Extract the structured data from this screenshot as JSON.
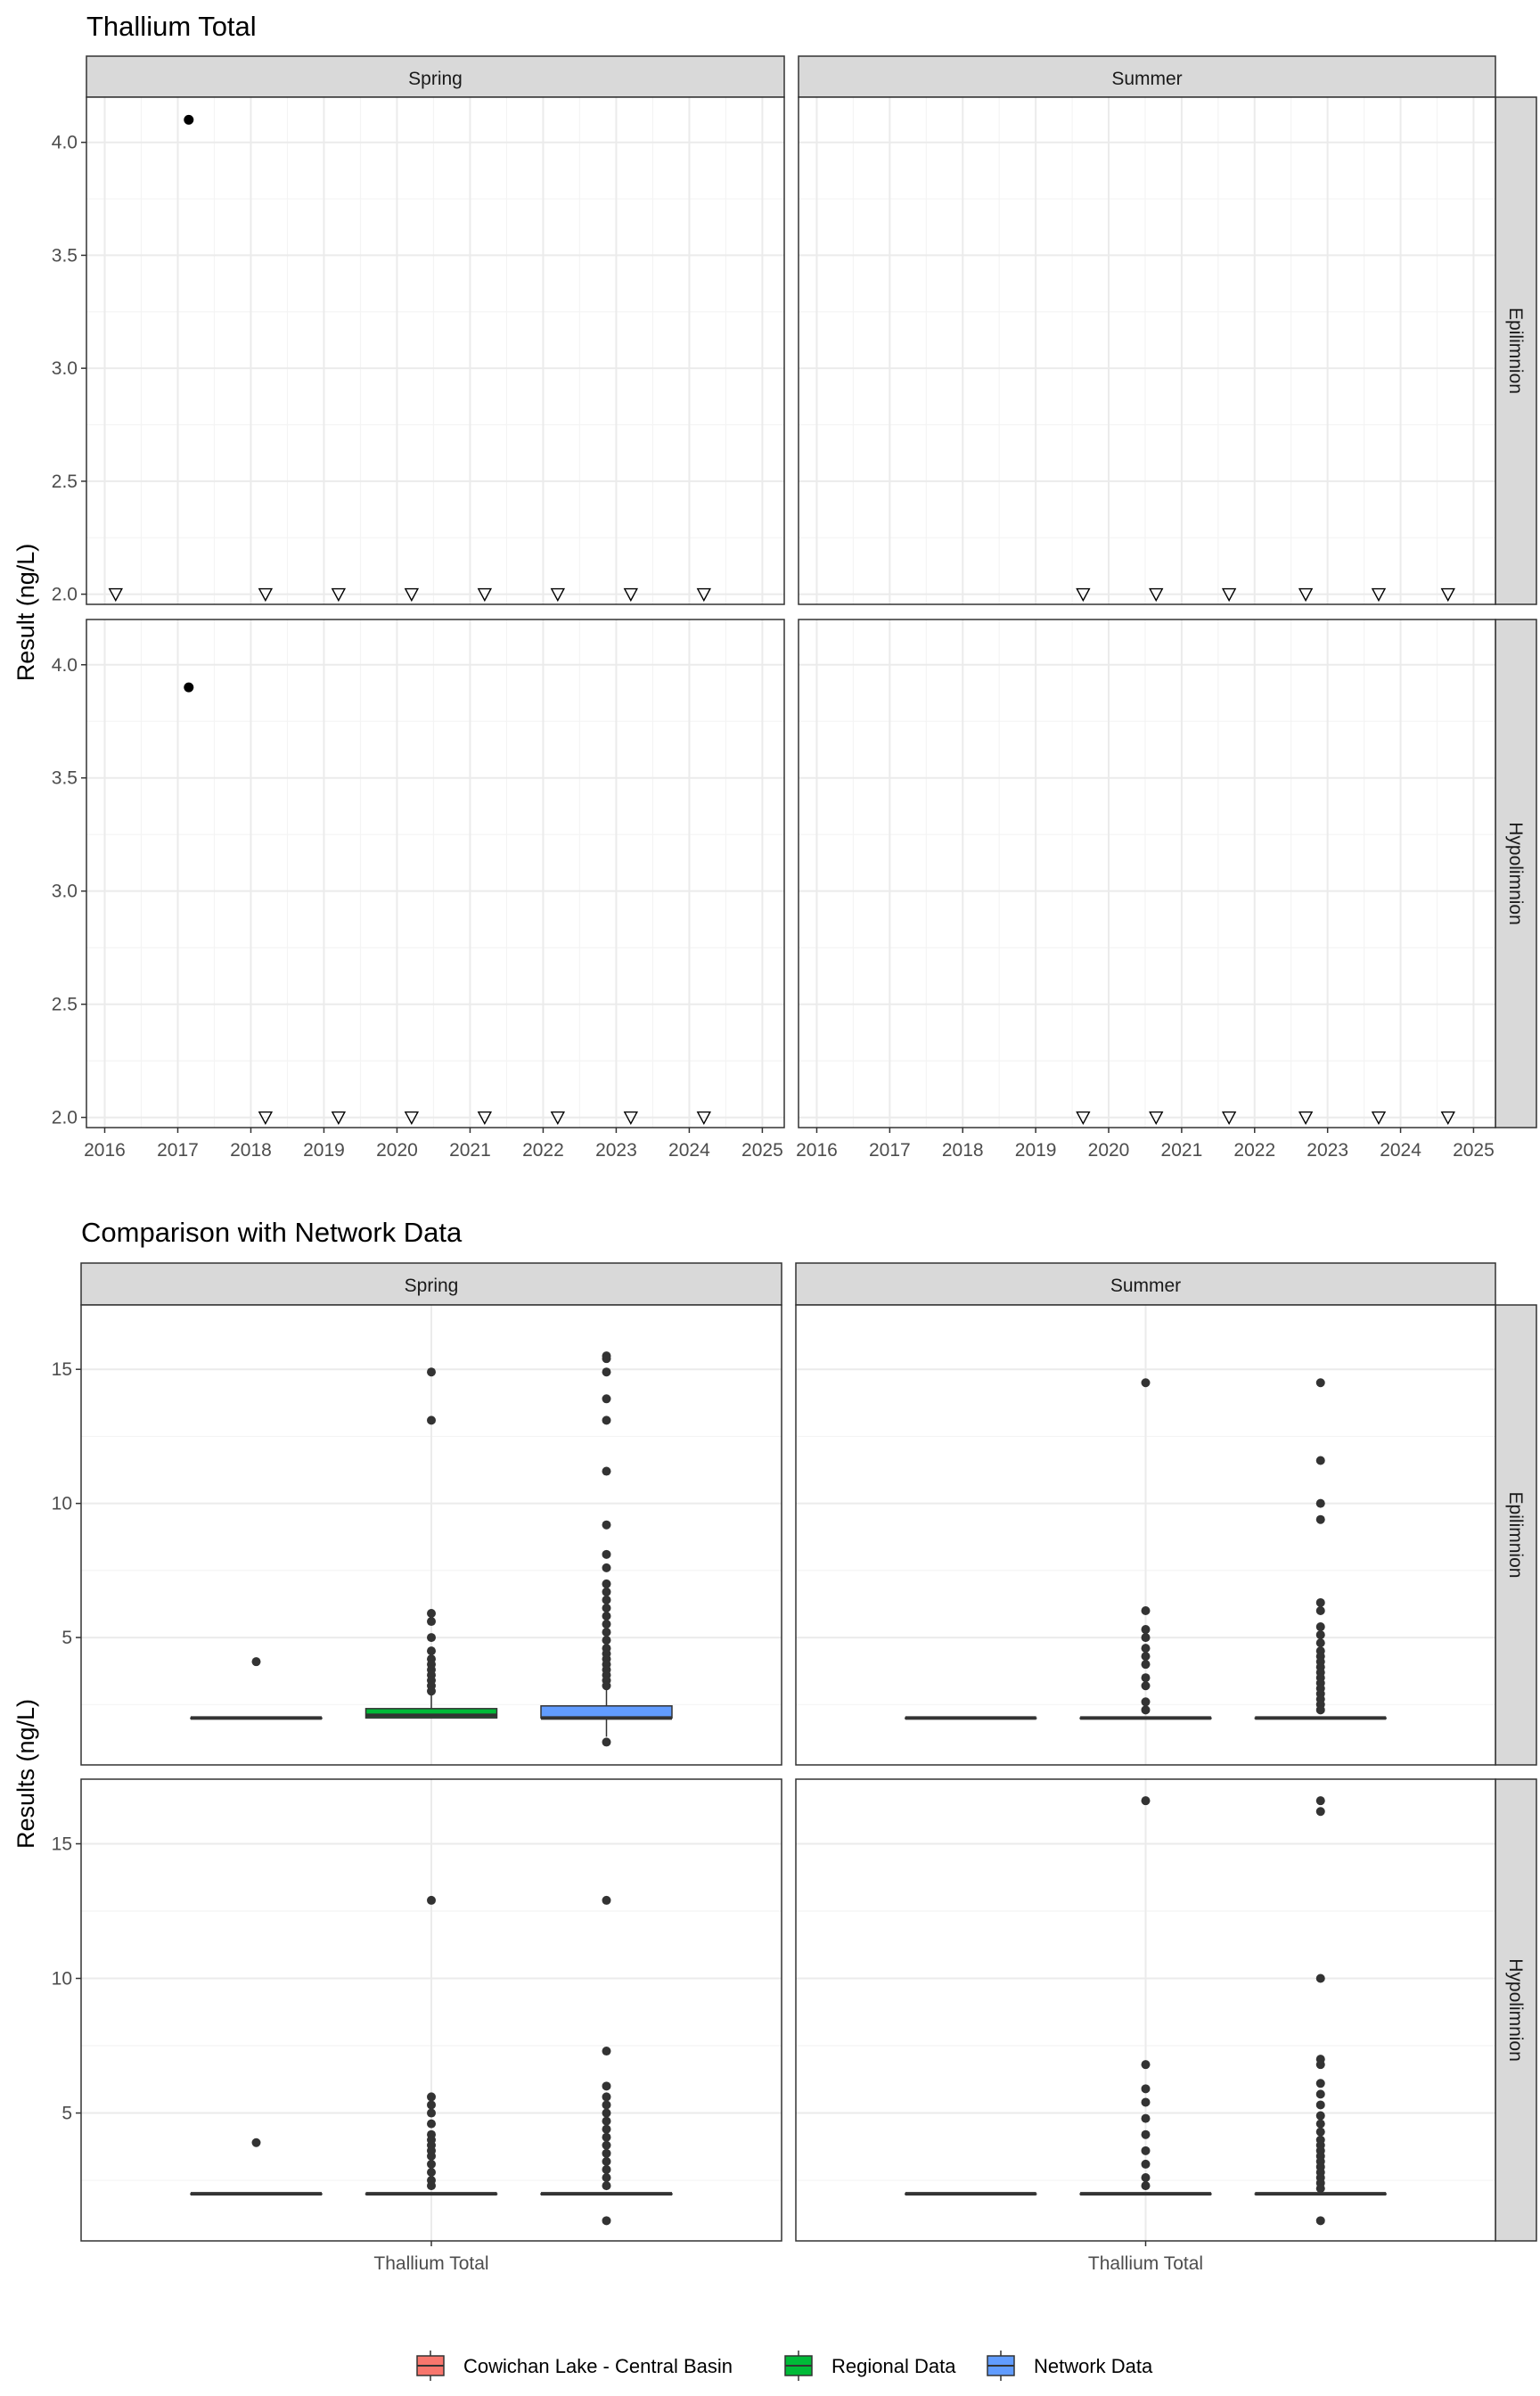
{
  "chart_data": [
    {
      "type": "scatter",
      "title": "Thallium Total",
      "ylabel": "Result (ng/L)",
      "xlabel": "",
      "facet_cols": [
        "Spring",
        "Summer"
      ],
      "facet_rows": [
        "Epilimnion",
        "Hypolimnion"
      ],
      "x_ticks": [
        "2016",
        "2017",
        "2018",
        "2019",
        "2020",
        "2021",
        "2022",
        "2023",
        "2024",
        "2025"
      ],
      "y_ticks": [
        "2.0",
        "2.5",
        "3.0",
        "3.5",
        "4.0"
      ],
      "xlim": [
        2015.75,
        2025.3
      ],
      "ylim": [
        1.955,
        4.2
      ],
      "grid": true,
      "marker_note": "filled circle = detected value; open triangle = below detection limit",
      "panels": [
        {
          "col": "Spring",
          "row": "Epilimnion",
          "detects": [
            {
              "x": 2017.15,
              "y": 4.1
            }
          ],
          "non_detects": [
            {
              "x": 2016.15,
              "y": 2.0
            },
            {
              "x": 2018.2,
              "y": 2.0
            },
            {
              "x": 2019.2,
              "y": 2.0
            },
            {
              "x": 2020.2,
              "y": 2.0
            },
            {
              "x": 2021.2,
              "y": 2.0
            },
            {
              "x": 2022.2,
              "y": 2.0
            },
            {
              "x": 2023.2,
              "y": 2.0
            },
            {
              "x": 2024.2,
              "y": 2.0
            }
          ]
        },
        {
          "col": "Summer",
          "row": "Epilimnion",
          "detects": [],
          "non_detects": [
            {
              "x": 2019.65,
              "y": 2.0
            },
            {
              "x": 2020.65,
              "y": 2.0
            },
            {
              "x": 2021.65,
              "y": 2.0
            },
            {
              "x": 2022.7,
              "y": 2.0
            },
            {
              "x": 2023.7,
              "y": 2.0
            },
            {
              "x": 2024.65,
              "y": 2.0
            }
          ]
        },
        {
          "col": "Spring",
          "row": "Hypolimnion",
          "detects": [
            {
              "x": 2017.15,
              "y": 3.9
            }
          ],
          "non_detects": [
            {
              "x": 2018.2,
              "y": 2.0
            },
            {
              "x": 2019.2,
              "y": 2.0
            },
            {
              "x": 2020.2,
              "y": 2.0
            },
            {
              "x": 2021.2,
              "y": 2.0
            },
            {
              "x": 2022.2,
              "y": 2.0
            },
            {
              "x": 2023.2,
              "y": 2.0
            },
            {
              "x": 2024.2,
              "y": 2.0
            }
          ]
        },
        {
          "col": "Summer",
          "row": "Hypolimnion",
          "detects": [],
          "non_detects": [
            {
              "x": 2019.65,
              "y": 2.0
            },
            {
              "x": 2020.65,
              "y": 2.0
            },
            {
              "x": 2021.65,
              "y": 2.0
            },
            {
              "x": 2022.7,
              "y": 2.0
            },
            {
              "x": 2023.7,
              "y": 2.0
            },
            {
              "x": 2024.65,
              "y": 2.0
            }
          ]
        }
      ]
    },
    {
      "type": "box",
      "title": "Comparison with Network Data",
      "ylabel": "Results (ng/L)",
      "xlabel": "",
      "category": "Thallium Total",
      "facet_cols": [
        "Spring",
        "Summer"
      ],
      "facet_rows": [
        "Epilimnion",
        "Hypolimnion"
      ],
      "y_ticks": [
        "5",
        "10",
        "15"
      ],
      "ylim": [
        0.25,
        17.4
      ],
      "grid": true,
      "legend_position": "bottom",
      "legend": [
        {
          "name": "Cowichan Lake - Central Basin",
          "color": "#F8766D"
        },
        {
          "name": "Regional Data",
          "color": "#00BA38"
        },
        {
          "name": "Network Data",
          "color": "#619CFF"
        }
      ],
      "panels": [
        {
          "col": "Spring",
          "row": "Epilimnion",
          "boxes": [
            {
              "group": "Cowichan Lake - Central Basin",
              "q1": 2.0,
              "median": 2.0,
              "q3": 2.0,
              "whisker_low": 2.0,
              "whisker_high": 2.0,
              "outliers": [
                4.1
              ]
            },
            {
              "group": "Regional Data",
              "q1": 2.0,
              "median": 2.1,
              "q3": 2.35,
              "whisker_low": 2.0,
              "whisker_high": 2.85,
              "outliers": [
                14.9,
                13.1,
                5.9,
                5.6,
                5.0,
                4.5,
                4.2,
                4.0,
                3.8,
                3.6,
                3.4,
                3.2,
                3.0
              ]
            },
            {
              "group": "Network Data",
              "q1": 2.0,
              "median": 2.0,
              "q3": 2.45,
              "whisker_low": 1.3,
              "whisker_high": 3.1,
              "outliers": [
                15.5,
                15.4,
                14.9,
                13.9,
                13.1,
                11.2,
                9.2,
                8.1,
                7.6,
                7.0,
                6.7,
                6.4,
                6.1,
                5.8,
                5.5,
                5.2,
                4.9,
                4.6,
                4.4,
                4.2,
                4.0,
                3.8,
                3.6,
                3.4,
                3.2,
                1.1
              ]
            }
          ]
        },
        {
          "col": "Summer",
          "row": "Epilimnion",
          "boxes": [
            {
              "group": "Cowichan Lake - Central Basin",
              "q1": 2.0,
              "median": 2.0,
              "q3": 2.0,
              "whisker_low": 2.0,
              "whisker_high": 2.0,
              "outliers": []
            },
            {
              "group": "Regional Data",
              "q1": 2.0,
              "median": 2.0,
              "q3": 2.0,
              "whisker_low": 2.0,
              "whisker_high": 2.0,
              "outliers": [
                14.5,
                6.0,
                5.3,
                5.0,
                4.6,
                4.3,
                4.0,
                3.5,
                3.2,
                2.6,
                2.3
              ]
            },
            {
              "group": "Network Data",
              "q1": 2.0,
              "median": 2.0,
              "q3": 2.0,
              "whisker_low": 2.0,
              "whisker_high": 2.0,
              "outliers": [
                14.5,
                11.6,
                10.0,
                9.4,
                6.3,
                6.0,
                5.4,
                5.1,
                4.8,
                4.5,
                4.3,
                4.1,
                3.9,
                3.7,
                3.5,
                3.3,
                3.1,
                2.9,
                2.7,
                2.5,
                2.3
              ]
            }
          ]
        },
        {
          "col": "Spring",
          "row": "Hypolimnion",
          "boxes": [
            {
              "group": "Cowichan Lake - Central Basin",
              "q1": 2.0,
              "median": 2.0,
              "q3": 2.0,
              "whisker_low": 2.0,
              "whisker_high": 2.0,
              "outliers": [
                3.9
              ]
            },
            {
              "group": "Regional Data",
              "q1": 2.0,
              "median": 2.0,
              "q3": 2.0,
              "whisker_low": 2.0,
              "whisker_high": 2.0,
              "outliers": [
                12.9,
                5.6,
                5.3,
                5.0,
                4.6,
                4.2,
                4.0,
                3.8,
                3.6,
                3.4,
                3.1,
                2.8,
                2.5,
                2.3
              ]
            },
            {
              "group": "Network Data",
              "q1": 2.0,
              "median": 2.0,
              "q3": 2.0,
              "whisker_low": 2.0,
              "whisker_high": 2.0,
              "outliers": [
                12.9,
                7.3,
                6.0,
                5.6,
                5.3,
                5.0,
                4.7,
                4.4,
                4.1,
                3.8,
                3.5,
                3.2,
                2.9,
                2.6,
                2.3,
                1.0
              ]
            }
          ]
        },
        {
          "col": "Summer",
          "row": "Hypolimnion",
          "boxes": [
            {
              "group": "Cowichan Lake - Central Basin",
              "q1": 2.0,
              "median": 2.0,
              "q3": 2.0,
              "whisker_low": 2.0,
              "whisker_high": 2.0,
              "outliers": []
            },
            {
              "group": "Regional Data",
              "q1": 2.0,
              "median": 2.0,
              "q3": 2.0,
              "whisker_low": 2.0,
              "whisker_high": 2.0,
              "outliers": [
                16.6,
                6.8,
                5.9,
                5.4,
                4.8,
                4.2,
                3.6,
                3.1,
                2.6,
                2.3
              ]
            },
            {
              "group": "Network Data",
              "q1": 2.0,
              "median": 2.0,
              "q3": 2.0,
              "whisker_low": 2.0,
              "whisker_high": 2.0,
              "outliers": [
                16.6,
                16.2,
                10.0,
                7.0,
                6.8,
                6.1,
                5.7,
                5.3,
                4.9,
                4.6,
                4.3,
                4.0,
                3.8,
                3.6,
                3.4,
                3.2,
                3.0,
                2.8,
                2.6,
                2.4,
                2.2,
                1.0
              ]
            }
          ]
        }
      ]
    }
  ]
}
